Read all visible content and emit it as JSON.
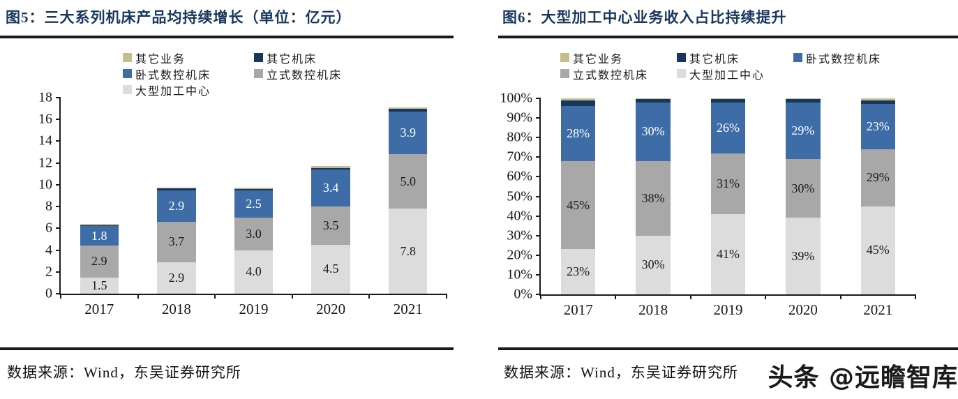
{
  "watermark": {
    "text": "头条 @远瞻智库"
  },
  "chart_data": [
    {
      "type": "bar",
      "subtype": "stacked",
      "title": "图5：三大系列机床产品均持续增长（单位：亿元）",
      "source": "数据来源：Wind，东吴证券研究所",
      "categories": [
        "2017",
        "2018",
        "2019",
        "2020",
        "2021"
      ],
      "ylim": [
        0,
        18
      ],
      "grid": false,
      "legend_position": "top",
      "legend_order": [
        "其它业务",
        "其它机床",
        "卧式数控机床",
        "立式数控机床",
        "大型加工中心"
      ],
      "yticks": [
        {
          "v": 0,
          "label": "0"
        },
        {
          "v": 2,
          "label": "2"
        },
        {
          "v": 4,
          "label": "4"
        },
        {
          "v": 6,
          "label": "6"
        },
        {
          "v": 8,
          "label": "8"
        },
        {
          "v": 10,
          "label": "10"
        },
        {
          "v": 12,
          "label": "12"
        },
        {
          "v": 14,
          "label": "14"
        },
        {
          "v": 16,
          "label": "16"
        },
        {
          "v": 18,
          "label": "18"
        }
      ],
      "series": [
        {
          "name": "大型加工中心",
          "color": "#dcdcdc",
          "label_color": "#1a1a1a",
          "values": [
            1.5,
            2.9,
            4.0,
            4.5,
            7.8
          ],
          "labels": [
            "1.5",
            "2.9",
            "4.0",
            "4.5",
            "7.8"
          ]
        },
        {
          "name": "立式数控机床",
          "color": "#a8a8a8",
          "label_color": "#1a1a1a",
          "values": [
            2.9,
            3.7,
            3.0,
            3.5,
            5.0
          ],
          "labels": [
            "2.9",
            "3.7",
            "3.0",
            "3.5",
            "5.0"
          ]
        },
        {
          "name": "卧式数控机床",
          "color": "#3e6ca6",
          "label_color": "#ffffff",
          "values": [
            1.8,
            2.9,
            2.5,
            3.4,
            3.9
          ],
          "labels": [
            "1.8",
            "2.9",
            "2.5",
            "3.4",
            "3.9"
          ]
        },
        {
          "name": "其它机床",
          "color": "#17375e",
          "label_color": "#ffffff",
          "values": [
            0.1,
            0.15,
            0.1,
            0.15,
            0.3
          ],
          "labels": [
            "",
            "",
            "",
            "",
            ""
          ]
        },
        {
          "name": "其它业务",
          "color": "#c6bd8f",
          "label_color": "#1a1a1a",
          "values": [
            0.1,
            0.1,
            0.15,
            0.15,
            0.1
          ],
          "labels": [
            "",
            "",
            "",
            "",
            ""
          ]
        }
      ]
    },
    {
      "type": "bar",
      "subtype": "stacked-100",
      "title": "图6：大型加工中心业务收入占比持续提升",
      "source": "数据来源：Wind，东吴证券研究所",
      "categories": [
        "2017",
        "2018",
        "2019",
        "2020",
        "2021"
      ],
      "ylim": [
        0,
        100
      ],
      "grid": false,
      "legend_position": "top",
      "legend_order": [
        "其它业务",
        "其它机床",
        "卧式数控机床",
        "立式数控机床",
        "大型加工中心"
      ],
      "yticks": [
        {
          "v": 0,
          "label": "0%"
        },
        {
          "v": 10,
          "label": "10%"
        },
        {
          "v": 20,
          "label": "20%"
        },
        {
          "v": 30,
          "label": "30%"
        },
        {
          "v": 40,
          "label": "40%"
        },
        {
          "v": 50,
          "label": "50%"
        },
        {
          "v": 60,
          "label": "60%"
        },
        {
          "v": 70,
          "label": "70%"
        },
        {
          "v": 80,
          "label": "80%"
        },
        {
          "v": 90,
          "label": "90%"
        },
        {
          "v": 100,
          "label": "100%"
        }
      ],
      "series": [
        {
          "name": "大型加工中心",
          "color": "#dcdcdc",
          "label_color": "#1a1a1a",
          "values": [
            23,
            30,
            41,
            39,
            45
          ],
          "labels": [
            "23%",
            "30%",
            "41%",
            "39%",
            "45%"
          ]
        },
        {
          "name": "立式数控机床",
          "color": "#a8a8a8",
          "label_color": "#1a1a1a",
          "values": [
            45,
            38,
            31,
            30,
            29
          ],
          "labels": [
            "45%",
            "38%",
            "31%",
            "30%",
            "29%"
          ]
        },
        {
          "name": "卧式数控机床",
          "color": "#3e6ca6",
          "label_color": "#ffffff",
          "values": [
            28,
            30,
            26,
            29,
            23
          ],
          "labels": [
            "28%",
            "30%",
            "26%",
            "29%",
            "23%"
          ]
        },
        {
          "name": "其它机床",
          "color": "#17375e",
          "label_color": "#ffffff",
          "values": [
            3,
            1.5,
            1.5,
            1.5,
            2
          ],
          "labels": [
            "",
            "",
            "",
            "",
            ""
          ]
        },
        {
          "name": "其它业务",
          "color": "#c6bd8f",
          "label_color": "#1a1a1a",
          "values": [
            1,
            0.5,
            0.5,
            0.5,
            1
          ],
          "labels": [
            "",
            "",
            "",
            "",
            ""
          ]
        }
      ]
    }
  ]
}
